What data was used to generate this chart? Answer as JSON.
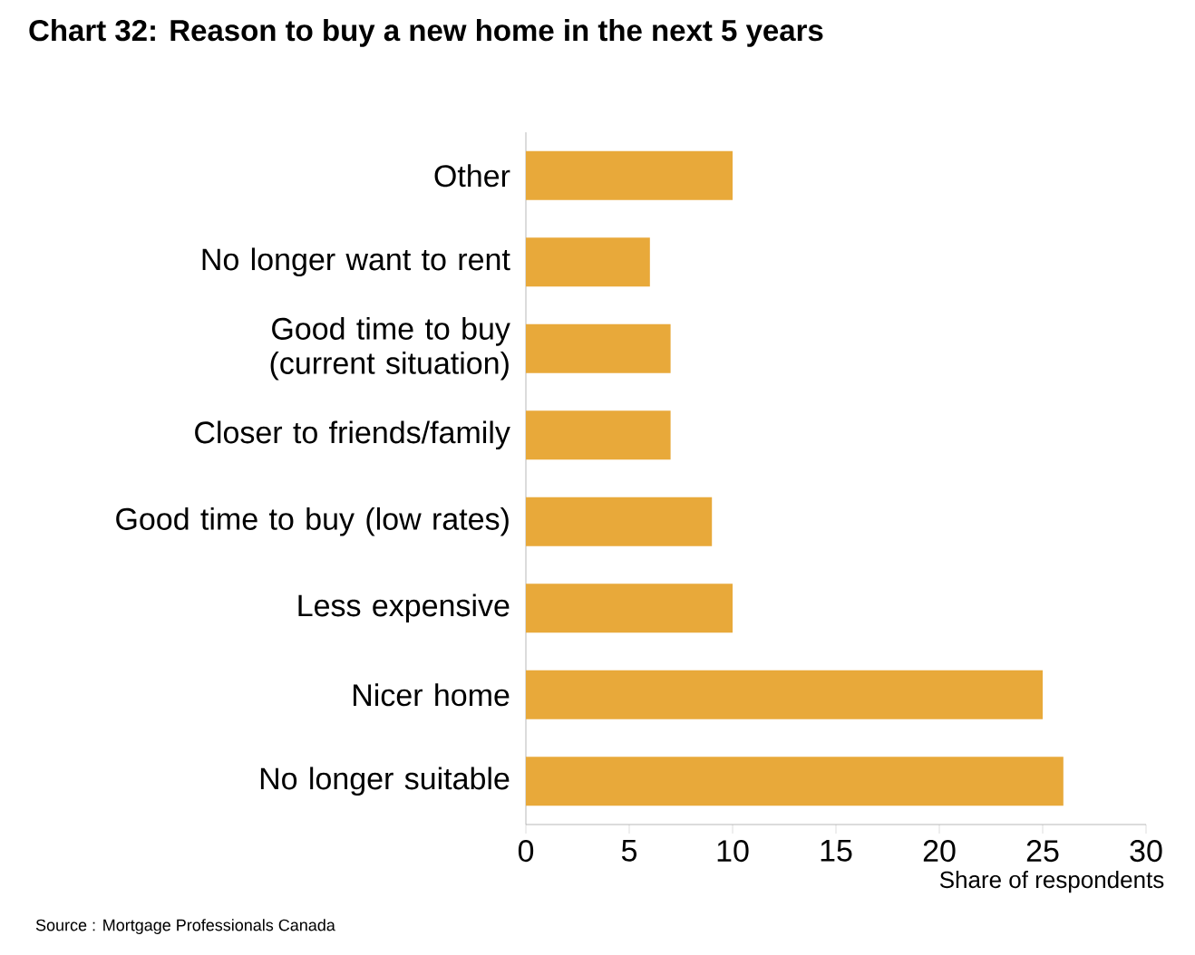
{
  "chart_data": {
    "type": "bar",
    "orientation": "horizontal",
    "title": "Chart 32: Reason to buy a new home in the next 5 years",
    "categories": [
      "Other",
      "No longer want to rent",
      "Good time to buy (current situation)",
      "Closer to friends/family",
      "Good time to buy (low rates)",
      "Less expensive",
      "Nicer home",
      "No longer suitable"
    ],
    "values": [
      10,
      6,
      7,
      7,
      9,
      10,
      25,
      26
    ],
    "color": "#e8a93a",
    "xlim": [
      0,
      30
    ],
    "xticks": [
      0,
      5,
      10,
      15,
      20,
      25,
      30
    ],
    "xlabel": "Share of respondents",
    "annotations": [
      "Source : Mortgage Professionals Canada"
    ],
    "grid": false
  }
}
